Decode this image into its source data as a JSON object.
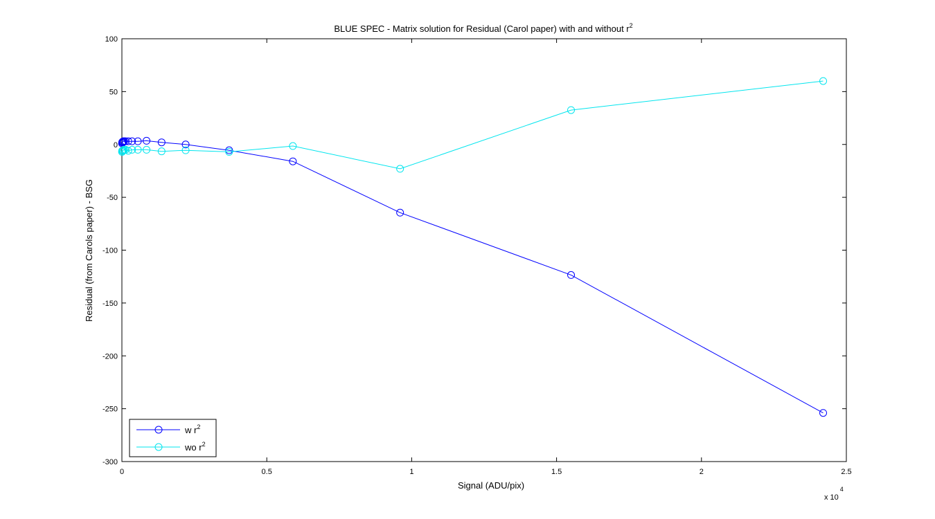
{
  "chart_data": {
    "type": "line",
    "title_main": "BLUE SPEC - Matrix solution for Residual (Carol paper) with and without r",
    "title_sup": "2",
    "xlabel": "Signal (ADU/pix)",
    "ylabel": "Residual (from Carols paper) - BSG",
    "x_exponent_base": "x 10",
    "x_exponent_power": "4",
    "xlim": [
      0,
      2.5
    ],
    "ylim": [
      -300,
      100
    ],
    "xticks": [
      0,
      0.5,
      1,
      1.5,
      2,
      2.5
    ],
    "xtick_labels": [
      "0",
      "0.5",
      "1",
      "1.5",
      "2",
      "2.5"
    ],
    "yticks": [
      100,
      50,
      0,
      -50,
      -100,
      -150,
      -200,
      -250,
      -300
    ],
    "ytick_labels": [
      "100",
      "50",
      "0",
      "-50",
      "-100",
      "-150",
      "-200",
      "-250",
      "-300"
    ],
    "grid": false,
    "legend_position": "bottom-left",
    "series": [
      {
        "name_main": "w r",
        "name_sup": "2",
        "color": "#0000ff",
        "marker": "circle",
        "x": [
          0.0005,
          0.001,
          0.002,
          0.003,
          0.005,
          0.008,
          0.013,
          0.022,
          0.035,
          0.055,
          0.085,
          0.137,
          0.22,
          0.37,
          0.59,
          0.96,
          1.55,
          2.42
        ],
        "y": [
          1,
          2,
          2.5,
          2.5,
          3,
          3,
          3,
          3,
          3,
          3,
          3.5,
          2,
          0,
          -5.5,
          -16,
          -64.5,
          -123.5,
          -254
        ]
      },
      {
        "name_main": "wo r",
        "name_sup": "2",
        "color": "#00e5ee",
        "marker": "circle",
        "x": [
          0.0005,
          0.001,
          0.002,
          0.003,
          0.005,
          0.008,
          0.013,
          0.022,
          0.035,
          0.055,
          0.085,
          0.137,
          0.22,
          0.37,
          0.59,
          0.96,
          1.55,
          2.42
        ],
        "y": [
          -7,
          -6,
          -6,
          -6,
          -5.5,
          -5,
          -5,
          -6,
          -5,
          -5,
          -5,
          -6.5,
          -5.5,
          -7,
          -1.5,
          -23,
          32.5,
          60
        ]
      }
    ]
  }
}
